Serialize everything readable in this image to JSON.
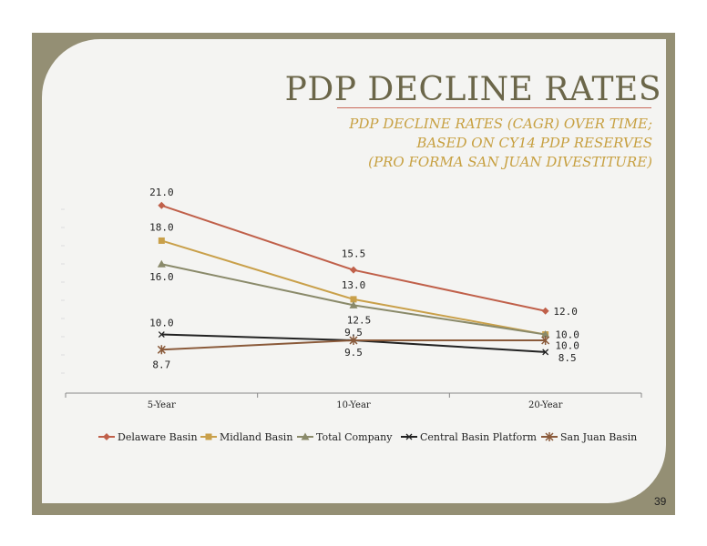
{
  "slide": {
    "title": "PDP DECLINE RATES",
    "subtitle_lines": [
      "PDP DECLINE RATES (CAGR) OVER TIME;",
      "BASED ON  CY14 PDP RESERVES",
      "(PRO FORMA SAN JUAN DIVESTITURE)"
    ],
    "page_number": "39"
  },
  "colors": {
    "frame": "#948f74",
    "panel": "#f4f4f2",
    "title": "#6b6649",
    "subtitle": "#c7a041"
  },
  "chart_data": {
    "type": "line",
    "title": "",
    "xlabel": "",
    "ylabel": "",
    "categories": [
      "5-Year",
      "10-Year",
      "20-Year"
    ],
    "ylim": [
      5,
      23
    ],
    "grid": false,
    "legend_position": "bottom",
    "series": [
      {
        "name": "Delaware Basin",
        "values": [
          21.0,
          15.5,
          12.0
        ],
        "color": "#c0604a",
        "marker": "diamond",
        "labels": [
          "21.0",
          "15.5",
          "12.0"
        ]
      },
      {
        "name": "Midland Basin",
        "values": [
          18.0,
          13.0,
          10.0
        ],
        "color": "#c9a04a",
        "marker": "square",
        "labels": [
          "18.0",
          "13.0",
          "10.0"
        ]
      },
      {
        "name": "Total Company",
        "values": [
          16.0,
          12.5,
          10.0
        ],
        "color": "#8a8a6a",
        "marker": "triangle",
        "labels": [
          "16.0",
          "12.5",
          "10.0"
        ]
      },
      {
        "name": "Central Basin Platform",
        "values": [
          10.0,
          9.5,
          8.5
        ],
        "color": "#222222",
        "marker": "x",
        "labels": [
          "10.0",
          "9.5",
          "8.5"
        ]
      },
      {
        "name": "San Juan Basin",
        "values": [
          8.7,
          9.5,
          9.5
        ],
        "color": "#8a5a3a",
        "marker": "star",
        "labels": [
          "8.7",
          "9.5",
          ""
        ]
      }
    ]
  }
}
